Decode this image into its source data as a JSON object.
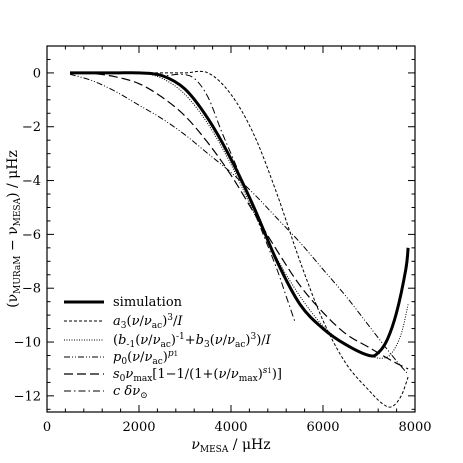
{
  "chart_data": {
    "type": "line",
    "xlabel_main": "ν",
    "xlabel_sub": "MESA",
    "xlabel_unit": " / μHz",
    "ylabel_parts": {
      "open": "(ν",
      "sub1": "MURaM",
      "mid": " − ν",
      "sub2": "MESA",
      "close": ") / μHz"
    },
    "xlim": [
      0,
      8000
    ],
    "ylim": [
      -12.6,
      1.0
    ],
    "x_ticks": [
      0,
      2000,
      4000,
      6000,
      8000
    ],
    "x_tick_labels": [
      "0",
      "2000",
      "4000",
      "6000",
      "8000"
    ],
    "y_ticks": [
      0,
      -2,
      -4,
      -6,
      -8,
      -10,
      -12
    ],
    "y_tick_labels": [
      "0",
      "−2",
      "−4",
      "−6",
      "−8",
      "−10",
      "−12"
    ],
    "grid": false,
    "legend_placement": "bottom-left",
    "series": [
      {
        "name": "simulation",
        "style": "thick-solid",
        "x": [
          500,
          1000,
          1500,
          2000,
          2500,
          3000,
          3500,
          4000,
          4500,
          5000,
          5500,
          6000,
          6500,
          7000,
          7200,
          7400,
          7600,
          7800,
          7850
        ],
        "y": [
          0,
          0,
          0,
          0,
          -0.1,
          -0.6,
          -1.7,
          -3.2,
          -5.0,
          -7.0,
          -8.6,
          -9.5,
          -10.1,
          -10.5,
          -10.4,
          -9.9,
          -8.9,
          -7.3,
          -6.5
        ]
      },
      {
        "name": "a3(ν/νac)^3/I",
        "style": "dashed",
        "x": [
          500,
          1000,
          1500,
          2000,
          2500,
          3000,
          3500,
          4000,
          4500,
          5000,
          5500,
          6000,
          6500,
          7000,
          7300,
          7500,
          7700,
          7850
        ],
        "y": [
          0,
          0,
          0,
          0,
          0,
          0,
          0,
          -0.8,
          -2.3,
          -4.5,
          -7.0,
          -9.2,
          -10.8,
          -11.8,
          -12.3,
          -12.4,
          -12.0,
          -11.3
        ]
      },
      {
        "name": "(b-1(ν/νac)^-1+b3(ν/νac)^3)/I",
        "style": "dotted",
        "x": [
          500,
          1000,
          1500,
          2000,
          2500,
          3000,
          3500,
          4000,
          4500,
          5000,
          5500,
          6000,
          6500,
          7000,
          7300,
          7500,
          7700,
          7850
        ],
        "y": [
          0,
          0,
          0,
          0,
          -0.2,
          -0.8,
          -1.9,
          -3.4,
          -5.2,
          -6.9,
          -8.3,
          -9.4,
          -10.1,
          -10.5,
          -10.6,
          -10.4,
          -9.7,
          -8.6
        ]
      },
      {
        "name": "p0(ν/νac)^p1",
        "style": "dash-dot-dot",
        "x": [
          500,
          1000,
          1500,
          2000,
          2500,
          3000,
          3500,
          4000,
          4500,
          5000,
          5500,
          6000,
          6500,
          7000,
          7500,
          7850
        ],
        "y": [
          -0.05,
          -0.3,
          -0.7,
          -1.2,
          -1.7,
          -2.3,
          -3.0,
          -3.7,
          -4.5,
          -5.4,
          -6.3,
          -7.3,
          -8.3,
          -9.4,
          -10.5,
          -11.2
        ]
      },
      {
        "name": "s0νmax[1−1/(1+(ν/νmax)^s1)]",
        "style": "long-dash",
        "x": [
          500,
          1000,
          1500,
          2000,
          2500,
          3000,
          3500,
          4000,
          4500,
          5000,
          5500,
          6000,
          6500,
          7000,
          7500,
          7850
        ],
        "y": [
          0,
          -0.02,
          -0.15,
          -0.4,
          -0.9,
          -1.6,
          -2.6,
          -3.8,
          -5.2,
          -6.6,
          -7.9,
          -8.9,
          -9.7,
          -10.2,
          -10.7,
          -11.0
        ]
      },
      {
        "name": "c δν⊙",
        "style": "dash-dot",
        "x": [
          500,
          1000,
          1500,
          2000,
          2300,
          2600,
          2900,
          3200,
          3500,
          3800,
          4100,
          4400,
          4700,
          5000,
          5200,
          5400
        ],
        "y": [
          0,
          0,
          0,
          0,
          -0.05,
          -0.1,
          -0.05,
          -0.2,
          -0.9,
          -2.2,
          -3.4,
          -4.7,
          -6.0,
          -7.3,
          -8.3,
          -9.3
        ]
      }
    ]
  }
}
